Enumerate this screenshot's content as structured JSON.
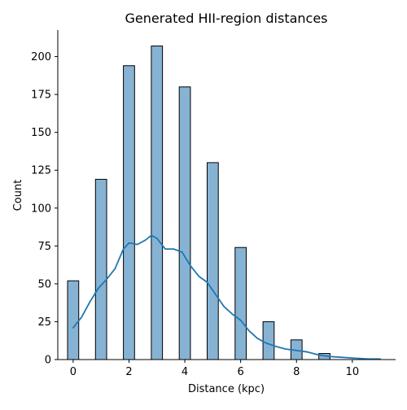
{
  "chart_data": {
    "type": "bar",
    "title": "Generated HII-region distances",
    "xlabel": "Distance (kpc)",
    "ylabel": "Count",
    "xlim": [
      -0.55,
      11.55
    ],
    "ylim": [
      0,
      217.5
    ],
    "x_ticks": [
      0,
      2,
      4,
      6,
      8,
      10
    ],
    "y_ticks": [
      0,
      25,
      50,
      75,
      100,
      125,
      150,
      175,
      200
    ],
    "grid": false,
    "bars": {
      "bin_width": 0.4,
      "centers": [
        0,
        1,
        2,
        3,
        4,
        5,
        6,
        7,
        8,
        9
      ],
      "values": [
        52,
        119,
        194,
        207,
        180,
        130,
        74,
        25,
        13,
        4
      ],
      "fill_color": "#86b3d4",
      "edge_color": "#000000"
    },
    "kde": {
      "color": "#1f77b4",
      "x": [
        0,
        0.3,
        0.6,
        0.9,
        1.2,
        1.5,
        1.8,
        2.0,
        2.3,
        2.6,
        2.8,
        3.0,
        3.3,
        3.6,
        3.9,
        4.2,
        4.5,
        4.8,
        5.1,
        5.4,
        5.7,
        6.0,
        6.3,
        6.6,
        6.9,
        7.2,
        7.6,
        8.0,
        8.4,
        8.8,
        9.2,
        9.6,
        10.0,
        10.5,
        11.0
      ],
      "y": [
        21,
        28,
        38,
        47,
        53,
        60,
        73,
        77,
        76,
        79,
        82,
        80,
        73,
        73,
        71,
        62,
        55,
        51,
        43,
        35,
        30,
        26,
        19,
        14,
        11,
        9,
        7,
        6,
        5,
        3,
        2,
        1.5,
        1,
        0.5,
        0.4
      ]
    }
  }
}
